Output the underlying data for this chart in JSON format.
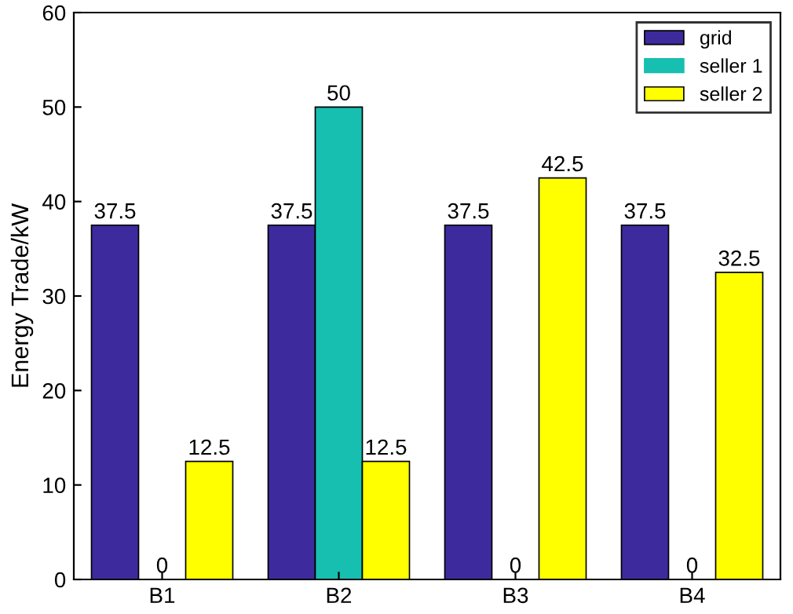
{
  "chart_data": {
    "type": "bar",
    "ylabel": "Energy Trade/kW",
    "categories": [
      "B1",
      "B2",
      "B3",
      "B4"
    ],
    "series": [
      {
        "name": "grid",
        "color": "#3d2a9c",
        "values": [
          37.5,
          37.5,
          37.5,
          37.5
        ]
      },
      {
        "name": "seller 1",
        "color": "#17bfb0",
        "values": [
          0,
          50,
          0,
          0
        ]
      },
      {
        "name": "seller 2",
        "color": "#ffff00",
        "values": [
          12.5,
          12.5,
          42.5,
          32.5
        ]
      }
    ],
    "ylim": [
      0,
      60
    ],
    "yticks": [
      0,
      10,
      20,
      30,
      40,
      50,
      60
    ],
    "grid": false,
    "legend": "top right",
    "data_labels": true
  }
}
